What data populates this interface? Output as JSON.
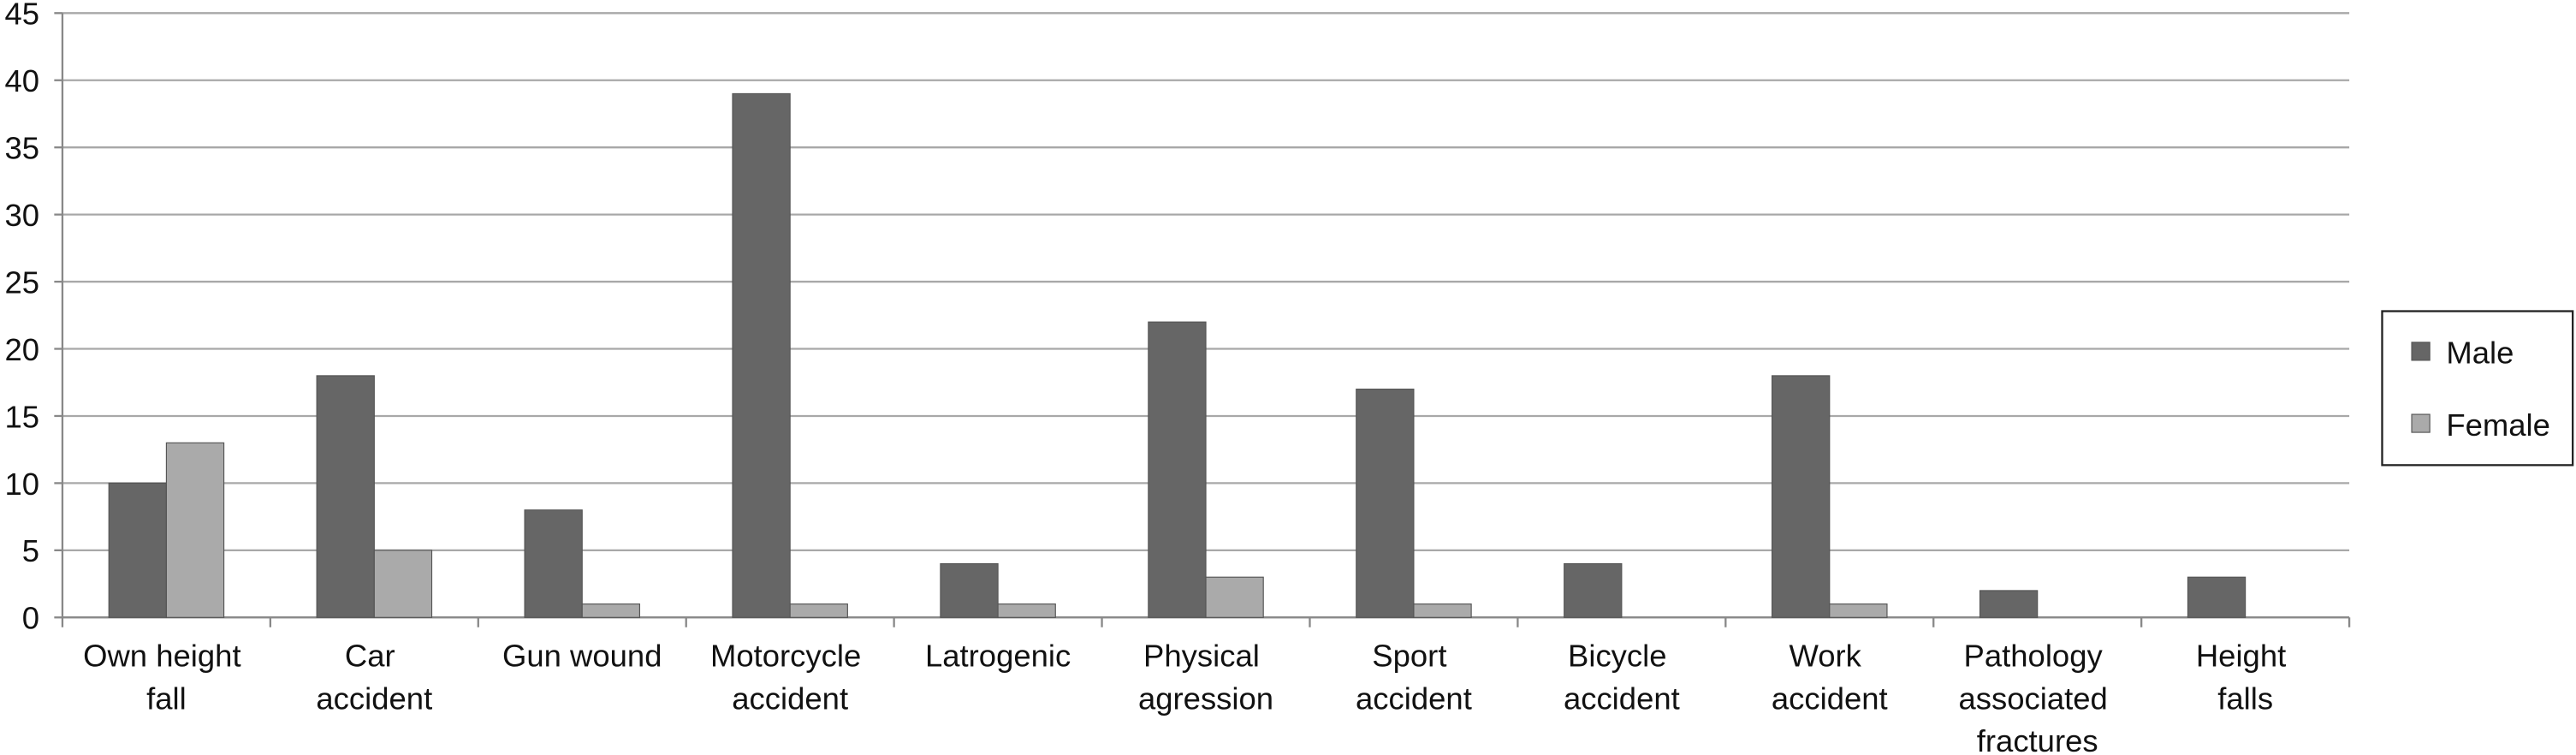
{
  "chart_data": {
    "type": "bar",
    "categories": [
      "Own height fall",
      "Car accident",
      "Gun wound",
      "Motorcycle accident",
      "Latrogenic",
      "Physical agression",
      "Sport accident",
      "Bicycle accident",
      "Work accident",
      "Pathology associated fractures",
      "Height falls"
    ],
    "series": [
      {
        "name": "Male",
        "color": "#666666",
        "values": [
          10,
          18,
          8,
          39,
          4,
          22,
          17,
          4,
          18,
          2,
          3
        ]
      },
      {
        "name": "Female",
        "color": "#aaaaaa",
        "values": [
          13,
          5,
          1,
          1,
          1,
          3,
          1,
          0,
          1,
          0,
          0
        ]
      }
    ],
    "ylim": [
      0,
      45
    ],
    "yticks": [
      0,
      5,
      10,
      15,
      20,
      25,
      30,
      35,
      40,
      45
    ],
    "grid": true,
    "legend": "right"
  }
}
